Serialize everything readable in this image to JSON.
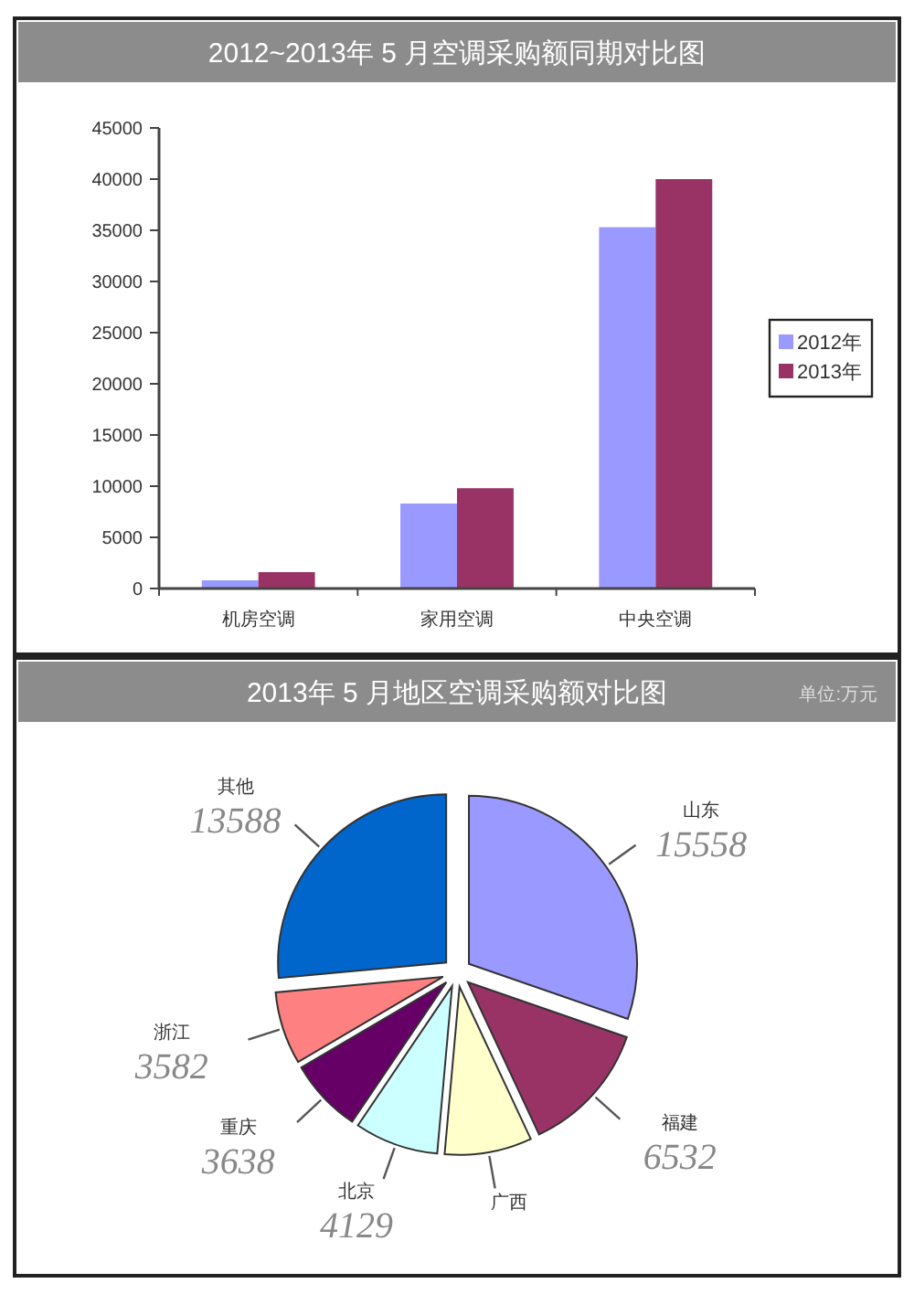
{
  "chart_data": [
    {
      "type": "bar",
      "title": "2012~2013年 5 月空调采购额同期对比图",
      "categories": [
        "机房空调",
        "家用空调",
        "中央空调"
      ],
      "series": [
        {
          "name": "2012年",
          "color": "#9999ff",
          "values": [
            800,
            8300,
            35300
          ]
        },
        {
          "name": "2013年",
          "color": "#993366",
          "values": [
            1600,
            9800,
            40000
          ]
        }
      ],
      "ylim": [
        0,
        45000
      ],
      "yticks": [
        0,
        5000,
        10000,
        15000,
        20000,
        25000,
        30000,
        35000,
        40000,
        45000
      ],
      "legend": "right"
    },
    {
      "type": "pie",
      "title": "2013年 5 月地区空调采购额对比图",
      "subtitle": "单位:万元",
      "categories": [
        "山东",
        "福建",
        "广西",
        "北京",
        "重庆",
        "浙江",
        "其他"
      ],
      "values": [
        15558,
        6532,
        4300,
        4129,
        3638,
        3582,
        13588
      ],
      "value_labels": [
        "15558",
        "6532",
        null,
        "4129",
        "3638",
        "3582",
        "13588"
      ],
      "colors": [
        "#9999ff",
        "#993366",
        "#ffffcc",
        "#ccffff",
        "#660066",
        "#ff8080",
        "#0066cc"
      ]
    }
  ]
}
